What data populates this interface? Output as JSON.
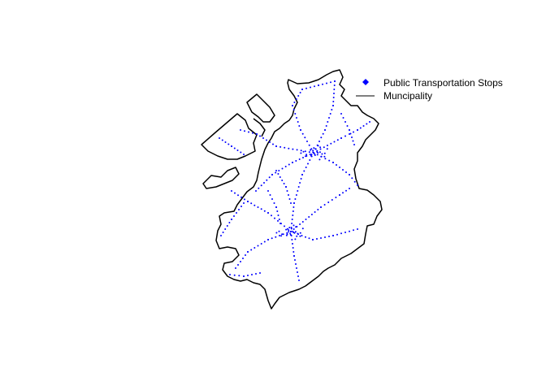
{
  "colors": {
    "stops": "#0000FF",
    "boundary": "#000000",
    "background": "#FFFFFF"
  },
  "legend": {
    "items": [
      {
        "label": "Public Transportation Stops",
        "symbol": "blue-diamond-icon"
      },
      {
        "label": "Muncipality",
        "symbol": "black-line-icon"
      }
    ]
  },
  "map": {
    "layers": [
      "Muncipality",
      "Public Transportation Stops"
    ]
  }
}
